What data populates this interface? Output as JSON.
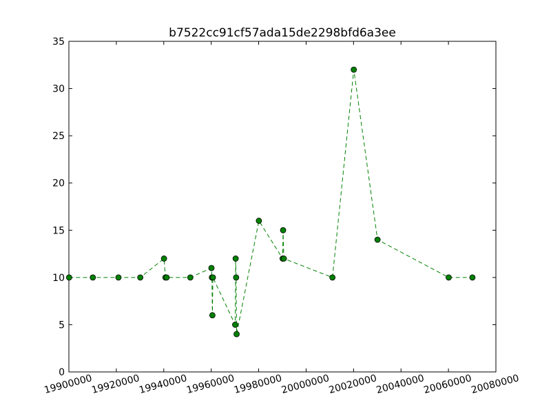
{
  "chart_data": {
    "type": "line",
    "title": "b7522cc91cf57ada15de2298bfd6a3ee",
    "xlabel": "",
    "ylabel": "",
    "xlim": [
      19900000,
      20080000
    ],
    "ylim": [
      0,
      35
    ],
    "x_ticks": [
      19900000,
      19920000,
      19940000,
      19960000,
      19980000,
      20000000,
      20020000,
      20040000,
      20060000,
      20080000
    ],
    "x_tick_labels": [
      "19900000",
      "19920000",
      "19940000",
      "19960000",
      "19980000",
      "20000000",
      "20020000",
      "20040000",
      "20060000",
      "20080000"
    ],
    "y_ticks": [
      0,
      5,
      10,
      15,
      20,
      25,
      30,
      35
    ],
    "y_tick_labels": [
      "0",
      "5",
      "10",
      "15",
      "20",
      "25",
      "30",
      "35"
    ],
    "grid": false,
    "legend": "none",
    "series": [
      {
        "color": "#008000",
        "line_style": "dashed",
        "marker": "circle",
        "points": [
          [
            19900101,
            10
          ],
          [
            19910101,
            10
          ],
          [
            19920901,
            10
          ],
          [
            19930101,
            10
          ],
          [
            19940101,
            12
          ],
          [
            19940701,
            10
          ],
          [
            19941201,
            10
          ],
          [
            19951201,
            10
          ],
          [
            19960101,
            11
          ],
          [
            19960301,
            10
          ],
          [
            19960501,
            6
          ],
          [
            19960701,
            10
          ],
          [
            19970101,
            5
          ],
          [
            19970301,
            12
          ],
          [
            19970501,
            10
          ],
          [
            19970701,
            4
          ],
          [
            19980101,
            16
          ],
          [
            19990101,
            12
          ],
          [
            19990301,
            15
          ],
          [
            19990601,
            12
          ],
          [
            20011101,
            10
          ],
          [
            20020101,
            32
          ],
          [
            20030101,
            14
          ],
          [
            20060101,
            10
          ],
          [
            20070101,
            10
          ]
        ]
      }
    ]
  }
}
